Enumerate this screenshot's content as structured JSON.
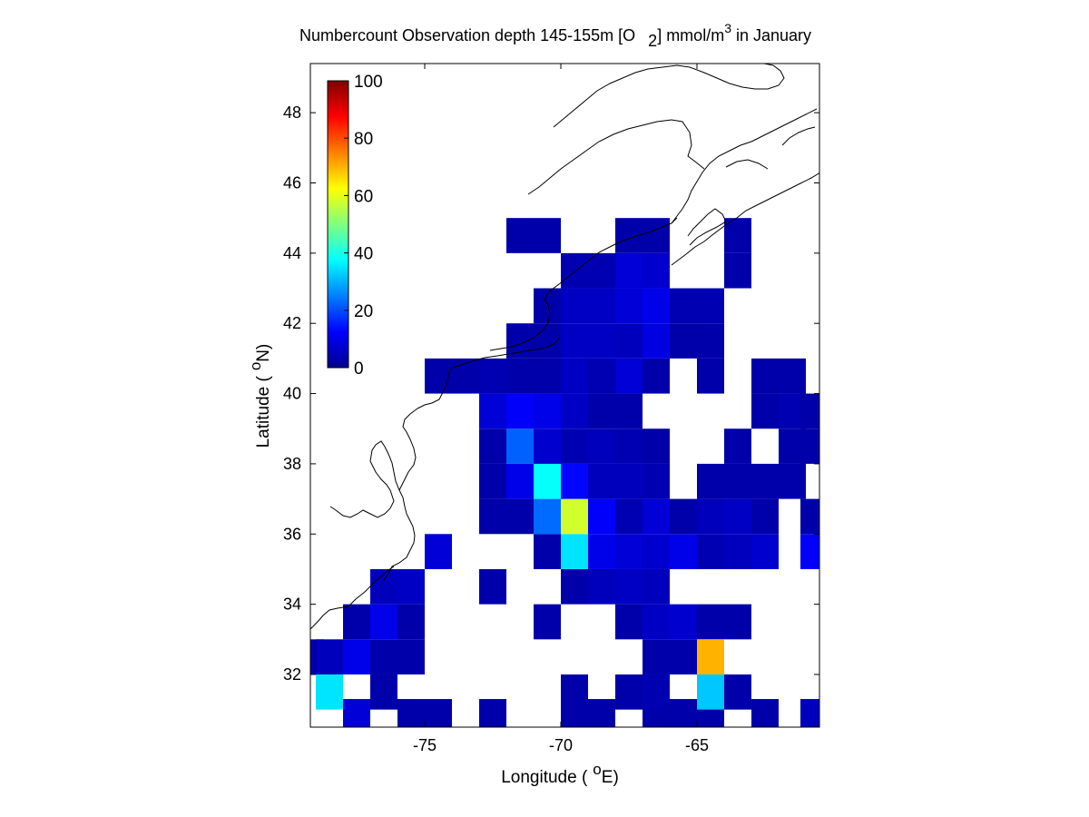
{
  "chart_data": {
    "type": "heatmap",
    "title": {
      "main": "Numbercount Observation depth 145-155m [O",
      "sub": "2",
      "mid": "] mmol/m",
      "sup": "3",
      "tail": " in January"
    },
    "xlabel": {
      "pre": "Longitude (",
      "sup": "o",
      "post": "E)"
    },
    "ylabel": {
      "pre": "Latitude (",
      "sup": "o",
      "post": "N)"
    },
    "xlim": [
      -79.2,
      -60.5
    ],
    "ylim": [
      30.5,
      49.4
    ],
    "x_ticks": [
      -75,
      -70,
      -65
    ],
    "y_ticks": [
      32,
      34,
      36,
      38,
      40,
      42,
      44,
      46,
      48
    ],
    "cell_width_deg": 1,
    "cell_height_deg": 1,
    "colormap": "jet",
    "clim": [
      0,
      100
    ],
    "colorbar": {
      "location": "northwest-inside",
      "ticks": [
        0,
        20,
        40,
        60,
        80,
        100
      ]
    },
    "cells": [
      {
        "lon": -71.5,
        "lat": 44.5,
        "v": 3
      },
      {
        "lon": -70.5,
        "lat": 44.5,
        "v": 3
      },
      {
        "lon": -79.2,
        "lat": 32.5,
        "v": 3
      },
      {
        "lon": -78.5,
        "lat": 32.5,
        "v": 5
      },
      {
        "lon": -77.5,
        "lat": 32.5,
        "v": 10
      },
      {
        "lon": -76.5,
        "lat": 32.5,
        "v": 3
      },
      {
        "lon": -75.5,
        "lat": 32.5,
        "v": 3
      },
      {
        "lon": -78.5,
        "lat": 31.5,
        "v": 35
      },
      {
        "lon": -76.5,
        "lat": 31.5,
        "v": 3
      },
      {
        "lon": -77.5,
        "lat": 30.8,
        "v": 8
      },
      {
        "lon": -75.5,
        "lat": 30.8,
        "v": 3
      },
      {
        "lon": -74.5,
        "lat": 30.8,
        "v": 3
      },
      {
        "lon": -72.5,
        "lat": 30.8,
        "v": 3
      },
      {
        "lon": -69.5,
        "lat": 30.8,
        "v": 3
      },
      {
        "lon": -68.5,
        "lat": 30.8,
        "v": 3
      },
      {
        "lon": -66.5,
        "lat": 30.8,
        "v": 3
      },
      {
        "lon": -65.5,
        "lat": 30.8,
        "v": 3
      },
      {
        "lon": -64.5,
        "lat": 30.8,
        "v": 3
      },
      {
        "lon": -62.5,
        "lat": 30.8,
        "v": 3
      },
      {
        "lon": -60.7,
        "lat": 30.8,
        "v": 5
      },
      {
        "lon": -77.5,
        "lat": 33.5,
        "v": 3
      },
      {
        "lon": -76.5,
        "lat": 33.5,
        "v": 10
      },
      {
        "lon": -75.5,
        "lat": 33.5,
        "v": 3
      },
      {
        "lon": -76.5,
        "lat": 34.5,
        "v": 5
      },
      {
        "lon": -75.5,
        "lat": 34.5,
        "v": 6
      },
      {
        "lon": -74.5,
        "lat": 35.5,
        "v": 8
      },
      {
        "lon": -72.5,
        "lat": 34.5,
        "v": 3
      },
      {
        "lon": -70.5,
        "lat": 33.5,
        "v": 3
      },
      {
        "lon": -69.5,
        "lat": 34.5,
        "v": 3
      },
      {
        "lon": -68.5,
        "lat": 34.5,
        "v": 5
      },
      {
        "lon": -67.5,
        "lat": 34.5,
        "v": 6
      },
      {
        "lon": -66.5,
        "lat": 34.5,
        "v": 5
      },
      {
        "lon": -70.5,
        "lat": 35.5,
        "v": 3
      },
      {
        "lon": -69.5,
        "lat": 35.5,
        "v": 35
      },
      {
        "lon": -68.5,
        "lat": 35.5,
        "v": 10
      },
      {
        "lon": -67.5,
        "lat": 35.5,
        "v": 8
      },
      {
        "lon": -66.5,
        "lat": 35.5,
        "v": 7
      },
      {
        "lon": -65.5,
        "lat": 35.5,
        "v": 10
      },
      {
        "lon": -64.5,
        "lat": 35.5,
        "v": 4
      },
      {
        "lon": -63.5,
        "lat": 35.5,
        "v": 5
      },
      {
        "lon": -62.5,
        "lat": 35.5,
        "v": 7
      },
      {
        "lon": -60.7,
        "lat": 35.5,
        "v": 12
      },
      {
        "lon": -72.5,
        "lat": 36.5,
        "v": 3
      },
      {
        "lon": -71.5,
        "lat": 36.5,
        "v": 3
      },
      {
        "lon": -70.5,
        "lat": 36.5,
        "v": 23
      },
      {
        "lon": -69.5,
        "lat": 36.5,
        "v": 58
      },
      {
        "lon": -68.5,
        "lat": 36.5,
        "v": 12
      },
      {
        "lon": -67.5,
        "lat": 36.5,
        "v": 4
      },
      {
        "lon": -66.5,
        "lat": 36.5,
        "v": 8
      },
      {
        "lon": -65.5,
        "lat": 36.5,
        "v": 3
      },
      {
        "lon": -64.5,
        "lat": 36.5,
        "v": 5
      },
      {
        "lon": -63.5,
        "lat": 36.5,
        "v": 6
      },
      {
        "lon": -62.5,
        "lat": 36.5,
        "v": 3
      },
      {
        "lon": -60.7,
        "lat": 36.5,
        "v": 3
      },
      {
        "lon": -72.5,
        "lat": 37.5,
        "v": 3
      },
      {
        "lon": -71.5,
        "lat": 37.5,
        "v": 10
      },
      {
        "lon": -70.5,
        "lat": 37.5,
        "v": 38
      },
      {
        "lon": -69.5,
        "lat": 37.5,
        "v": 13
      },
      {
        "lon": -68.5,
        "lat": 37.5,
        "v": 5
      },
      {
        "lon": -67.5,
        "lat": 37.5,
        "v": 5
      },
      {
        "lon": -66.5,
        "lat": 37.5,
        "v": 4
      },
      {
        "lon": -64.5,
        "lat": 37.5,
        "v": 3
      },
      {
        "lon": -63.5,
        "lat": 37.5,
        "v": 3
      },
      {
        "lon": -62.5,
        "lat": 37.5,
        "v": 3
      },
      {
        "lon": -61.5,
        "lat": 37.5,
        "v": 3
      },
      {
        "lon": -72.5,
        "lat": 38.5,
        "v": 3
      },
      {
        "lon": -71.5,
        "lat": 38.5,
        "v": 22
      },
      {
        "lon": -70.5,
        "lat": 38.5,
        "v": 7
      },
      {
        "lon": -69.5,
        "lat": 38.5,
        "v": 4
      },
      {
        "lon": -68.5,
        "lat": 38.5,
        "v": 5
      },
      {
        "lon": -67.5,
        "lat": 38.5,
        "v": 4
      },
      {
        "lon": -66.5,
        "lat": 38.5,
        "v": 3
      },
      {
        "lon": -63.5,
        "lat": 38.5,
        "v": 3
      },
      {
        "lon": -61.5,
        "lat": 38.5,
        "v": 3
      },
      {
        "lon": -60.7,
        "lat": 38.5,
        "v": 3
      },
      {
        "lon": -72.5,
        "lat": 39.5,
        "v": 8
      },
      {
        "lon": -71.5,
        "lat": 39.5,
        "v": 12
      },
      {
        "lon": -70.5,
        "lat": 39.5,
        "v": 10
      },
      {
        "lon": -69.5,
        "lat": 39.5,
        "v": 6
      },
      {
        "lon": -68.5,
        "lat": 39.5,
        "v": 3
      },
      {
        "lon": -67.5,
        "lat": 39.5,
        "v": 3
      },
      {
        "lon": -62.5,
        "lat": 39.5,
        "v": 3
      },
      {
        "lon": -61.5,
        "lat": 39.5,
        "v": 4
      },
      {
        "lon": -60.7,
        "lat": 39.5,
        "v": 3
      },
      {
        "lon": -74.5,
        "lat": 40.5,
        "v": 3
      },
      {
        "lon": -73.5,
        "lat": 40.5,
        "v": 3
      },
      {
        "lon": -72.5,
        "lat": 40.5,
        "v": 4
      },
      {
        "lon": -71.5,
        "lat": 40.5,
        "v": 3
      },
      {
        "lon": -70.5,
        "lat": 40.5,
        "v": 3
      },
      {
        "lon": -69.5,
        "lat": 40.5,
        "v": 6
      },
      {
        "lon": -68.5,
        "lat": 40.5,
        "v": 4
      },
      {
        "lon": -67.5,
        "lat": 40.5,
        "v": 8
      },
      {
        "lon": -66.5,
        "lat": 40.5,
        "v": 3
      },
      {
        "lon": -64.5,
        "lat": 40.5,
        "v": 3
      },
      {
        "lon": -62.5,
        "lat": 40.5,
        "v": 3
      },
      {
        "lon": -61.5,
        "lat": 40.5,
        "v": 3
      },
      {
        "lon": -71.5,
        "lat": 41.5,
        "v": 3
      },
      {
        "lon": -70.5,
        "lat": 41.5,
        "v": 3
      },
      {
        "lon": -69.5,
        "lat": 41.5,
        "v": 6
      },
      {
        "lon": -68.5,
        "lat": 41.5,
        "v": 6
      },
      {
        "lon": -67.5,
        "lat": 41.5,
        "v": 5
      },
      {
        "lon": -66.5,
        "lat": 41.5,
        "v": 9
      },
      {
        "lon": -65.5,
        "lat": 41.5,
        "v": 3
      },
      {
        "lon": -64.5,
        "lat": 41.5,
        "v": 3
      },
      {
        "lon": -70.5,
        "lat": 42.5,
        "v": 3
      },
      {
        "lon": -69.5,
        "lat": 42.5,
        "v": 6
      },
      {
        "lon": -68.5,
        "lat": 42.5,
        "v": 6
      },
      {
        "lon": -67.5,
        "lat": 42.5,
        "v": 8
      },
      {
        "lon": -66.5,
        "lat": 42.5,
        "v": 10
      },
      {
        "lon": -65.5,
        "lat": 42.5,
        "v": 4
      },
      {
        "lon": -64.5,
        "lat": 42.5,
        "v": 4
      },
      {
        "lon": -69.5,
        "lat": 43.5,
        "v": 4
      },
      {
        "lon": -68.5,
        "lat": 43.5,
        "v": 4
      },
      {
        "lon": -67.5,
        "lat": 43.5,
        "v": 8
      },
      {
        "lon": -66.5,
        "lat": 43.5,
        "v": 7
      },
      {
        "lon": -63.5,
        "lat": 43.5,
        "v": 3
      },
      {
        "lon": -67.5,
        "lat": 44.5,
        "v": 3
      },
      {
        "lon": -66.5,
        "lat": 44.5,
        "v": 3
      },
      {
        "lon": -63.5,
        "lat": 44.5,
        "v": 3
      },
      {
        "lon": -66.5,
        "lat": 33.5,
        "v": 6
      },
      {
        "lon": -65.5,
        "lat": 33.5,
        "v": 7
      },
      {
        "lon": -64.5,
        "lat": 33.5,
        "v": 3
      },
      {
        "lon": -63.5,
        "lat": 33.5,
        "v": 3
      },
      {
        "lon": -67.5,
        "lat": 33.5,
        "v": 3
      },
      {
        "lon": -65.5,
        "lat": 32.5,
        "v": 3
      },
      {
        "lon": -66.5,
        "lat": 32.5,
        "v": 3
      },
      {
        "lon": -64.5,
        "lat": 32.5,
        "v": 70
      },
      {
        "lon": -64.5,
        "lat": 31.5,
        "v": 32
      },
      {
        "lon": -63.5,
        "lat": 31.5,
        "v": 3
      },
      {
        "lon": -69.5,
        "lat": 31.5,
        "v": 3
      },
      {
        "lon": -67.5,
        "lat": 31.5,
        "v": 3
      },
      {
        "lon": -66.5,
        "lat": 31.5,
        "v": 4
      }
    ]
  }
}
